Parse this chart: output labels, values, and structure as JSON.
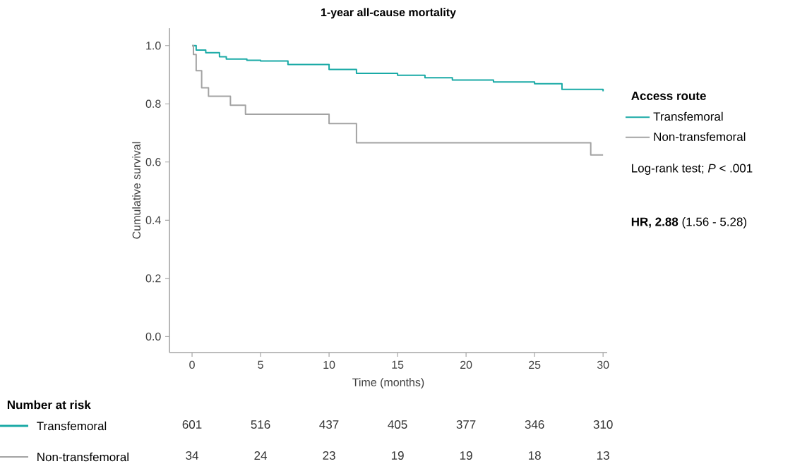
{
  "chart_data": [
    {
      "type": "step",
      "title": "1-year all-cause mortality",
      "xlabel": "Time (months)",
      "ylabel": "Cumulative survival",
      "legend_title": "Access route",
      "legend": "right",
      "xlim": [
        -1.65,
        30.3
      ],
      "ylim": [
        -0.055,
        1.06
      ],
      "xticks": [
        0,
        5,
        10,
        15,
        20,
        25,
        30
      ],
      "yticks": [
        {
          "value": 0,
          "label": "0.0"
        },
        0.2,
        0.4,
        0.6,
        0.8,
        {
          "value": 1,
          "label": "1.0"
        }
      ],
      "series": [
        {
          "name": "Transfemoral",
          "color": "#1aaaa6",
          "x": [
            0,
            0.3,
            1,
            2,
            2.5,
            4,
            5,
            7,
            10,
            12,
            15,
            17,
            19,
            22,
            25,
            27,
            30
          ],
          "values": [
            1.0,
            0.985,
            0.976,
            0.962,
            0.954,
            0.95,
            0.947,
            0.935,
            0.918,
            0.905,
            0.898,
            0.89,
            0.882,
            0.875,
            0.869,
            0.85,
            0.843
          ]
        },
        {
          "name": "Non-transfemoral",
          "color": "#a3a3a3",
          "x": [
            0,
            0.1,
            0.3,
            0.7,
            1.2,
            2.8,
            3.9,
            10,
            12,
            29.1,
            30
          ],
          "values": [
            1.0,
            0.97,
            0.914,
            0.855,
            0.826,
            0.795,
            0.764,
            0.732,
            0.666,
            0.624,
            0.624
          ]
        }
      ],
      "annotations": [
        "Log-rank test; *P* < .001",
        "**HR, 2.88** (1.56 - 5.28)"
      ]
    },
    {
      "type": "heatmap",
      "title": "Number at risk",
      "categories": [
        null,
        null,
        null,
        null,
        null,
        null,
        null
      ],
      "y_categories": [
        "Transfemoral",
        "Non-transfemoral"
      ],
      "data_labels": true,
      "cells": [
        [
          601,
          516,
          437,
          405,
          377,
          346,
          310
        ],
        [
          34,
          24,
          23,
          19,
          19,
          18,
          13
        ]
      ]
    }
  ]
}
